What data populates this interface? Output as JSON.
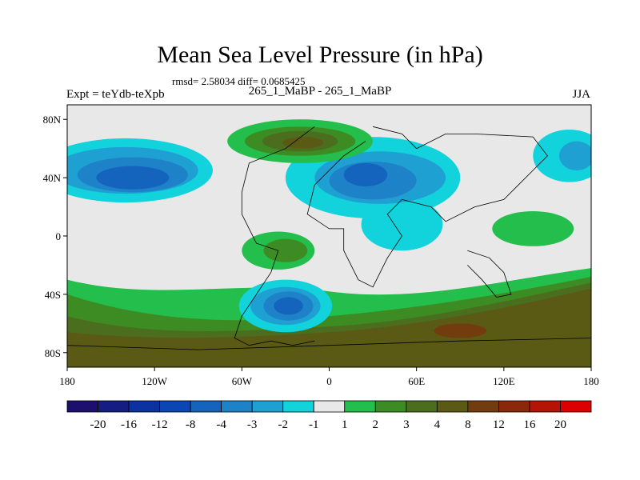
{
  "chart_data": {
    "type": "heatmap",
    "title": "Mean Sea Level Pressure (in hPa)",
    "stats_line": "rmsd= 2.58034 diff= 0.0685425",
    "left_label": "Expt = teYdb-teXpb",
    "center_label": "265_1_MaBP - 265_1_MaBP",
    "right_label": "JJA",
    "x_ticks": [
      {
        "value": -180,
        "label": "180"
      },
      {
        "value": -120,
        "label": "120W"
      },
      {
        "value": -60,
        "label": "60W"
      },
      {
        "value": 0,
        "label": "0"
      },
      {
        "value": 60,
        "label": "60E"
      },
      {
        "value": 120,
        "label": "120E"
      },
      {
        "value": 180,
        "label": "180"
      }
    ],
    "y_ticks": [
      {
        "value": 80,
        "label": "80N"
      },
      {
        "value": 40,
        "label": "40N"
      },
      {
        "value": 0,
        "label": "0"
      },
      {
        "value": -40,
        "label": "40S"
      },
      {
        "value": -80,
        "label": "80S"
      }
    ],
    "xlim": [
      -180,
      180
    ],
    "ylim": [
      -90,
      90
    ],
    "colorbar": {
      "colors": [
        "#1d0f6e",
        "#141e82",
        "#0a32a0",
        "#0a46b4",
        "#1464be",
        "#1e82c8",
        "#1ea0d2",
        "#12d2dc",
        "#e8e8e8",
        "#23be4b",
        "#3c8c23",
        "#4b6e1e",
        "#5a5a14",
        "#733c0f",
        "#8c280a",
        "#b41405",
        "#dc0000"
      ],
      "labels": [
        "-20",
        "-16",
        "-12",
        "-8",
        "-4",
        "-3",
        "-2",
        "-1",
        "1",
        "2",
        "3",
        "4",
        "8",
        "12",
        "16",
        "20"
      ]
    },
    "regions": [
      {
        "level": "-1",
        "color": "#12d2dc",
        "lon": -140,
        "lat": 45,
        "rlon": 60,
        "rlat": 22
      },
      {
        "level": "-1",
        "color": "#12d2dc",
        "lon": 30,
        "lat": 40,
        "rlon": 60,
        "rlat": 28
      },
      {
        "level": "-1",
        "color": "#12d2dc",
        "lon": 165,
        "lat": 55,
        "rlon": 25,
        "rlat": 18
      },
      {
        "level": "-1",
        "color": "#12d2dc",
        "lon": 50,
        "lat": 8,
        "rlon": 28,
        "rlat": 18
      },
      {
        "level": "-1",
        "color": "#12d2dc",
        "lon": -30,
        "lat": -48,
        "rlon": 32,
        "rlat": 18
      },
      {
        "level": "-2",
        "color": "#1ea0d2",
        "lon": -140,
        "lat": 45,
        "rlon": 50,
        "rlat": 16
      },
      {
        "level": "-2",
        "color": "#1ea0d2",
        "lon": 35,
        "lat": 40,
        "rlon": 45,
        "rlat": 18
      },
      {
        "level": "-2",
        "color": "#1ea0d2",
        "lon": 170,
        "lat": 55,
        "rlon": 12,
        "rlat": 10
      },
      {
        "level": "-2",
        "color": "#1ea0d2",
        "lon": -30,
        "lat": -48,
        "rlon": 24,
        "rlat": 13
      },
      {
        "level": "-3",
        "color": "#1e82c8",
        "lon": -135,
        "lat": 42,
        "rlon": 38,
        "rlat": 12
      },
      {
        "level": "-3",
        "color": "#1e82c8",
        "lon": 30,
        "lat": 38,
        "rlon": 30,
        "rlat": 13
      },
      {
        "level": "-3",
        "color": "#1e82c8",
        "lon": -28,
        "lat": -48,
        "rlon": 17,
        "rlat": 10
      },
      {
        "level": "-4",
        "color": "#1464be",
        "lon": -135,
        "lat": 40,
        "rlon": 25,
        "rlat": 8
      },
      {
        "level": "-4",
        "color": "#1464be",
        "lon": 25,
        "lat": 42,
        "rlon": 15,
        "rlat": 8
      },
      {
        "level": "-4",
        "color": "#1464be",
        "lon": -28,
        "lat": -48,
        "rlon": 10,
        "rlat": 6
      },
      {
        "level": "1",
        "color": "#23be4b",
        "lon": -20,
        "lat": 65,
        "rlon": 50,
        "rlat": 15
      },
      {
        "level": "1",
        "color": "#23be4b",
        "lon": -35,
        "lat": -10,
        "rlon": 25,
        "rlat": 13
      },
      {
        "level": "1",
        "color": "#23be4b",
        "lon": 140,
        "lat": 5,
        "rlon": 28,
        "rlat": 12
      },
      {
        "level": "2",
        "color": "#3c8c23",
        "lon": -20,
        "lat": 65,
        "rlon": 38,
        "rlat": 10
      },
      {
        "level": "2",
        "color": "#3c8c23",
        "lon": -30,
        "lat": -10,
        "rlon": 15,
        "rlat": 8
      },
      {
        "level": "3",
        "color": "#4b6e1e",
        "lon": -20,
        "lat": 65,
        "rlon": 26,
        "rlat": 7
      },
      {
        "level": "4",
        "color": "#5a5a14",
        "lon": -18,
        "lat": 64,
        "rlon": 14,
        "rlat": 4
      },
      {
        "level": "8",
        "color": "#733c0f",
        "lon": 90,
        "lat": -65,
        "rlon": 18,
        "rlat": 5
      }
    ]
  }
}
